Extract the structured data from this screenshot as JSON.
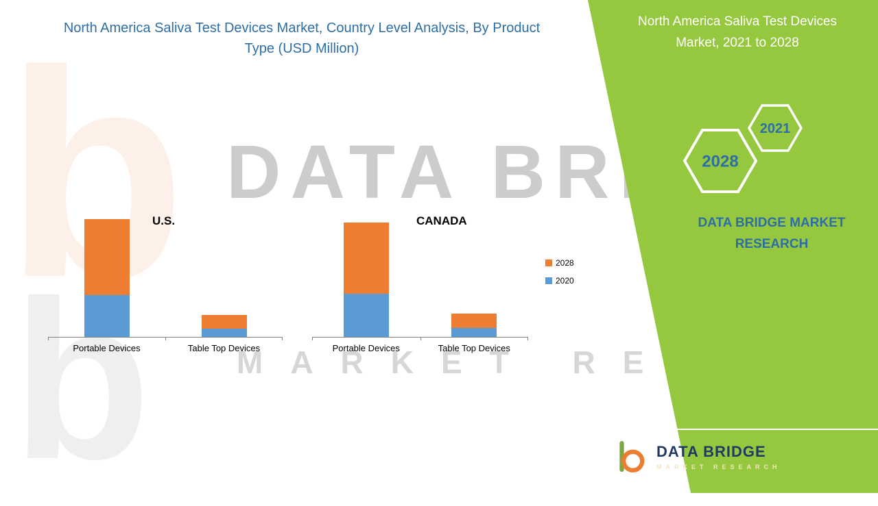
{
  "colors": {
    "title_blue": "#2d6ea6",
    "panel_green": "#95c83e",
    "navy": "#1f3864",
    "bar_orange": "#ED7D31",
    "bar_blue": "#5B9BD5"
  },
  "header": {
    "title_lines": [
      "North America Saliva Test Devices Market, Country Level Analysis, By Product",
      "Type  (USD Million)"
    ]
  },
  "right_panel": {
    "title_lines": [
      "North America Saliva Test Devices",
      "Market, 2021 to 2028"
    ],
    "badge_back": "2028",
    "badge_front": "2021",
    "brand_lines": [
      "DATA BRIDGE MARKET",
      "RESEARCH"
    ]
  },
  "watermark": {
    "line1": "DATA BRIDGE",
    "line2": "MARKET RESEARCH",
    "letter_b": "b"
  },
  "logo": {
    "name": "DATA BRIDGE",
    "subtitle": "MARKET RESEARCH"
  },
  "chart_data": {
    "type": "bar",
    "stacked": true,
    "units": "USD Million",
    "value_axis_visible": false,
    "legend": [
      {
        "label": "2028",
        "color": "#ED7D31"
      },
      {
        "label": "2020",
        "color": "#5B9BD5"
      }
    ],
    "groups": [
      {
        "country": "U.S.",
        "categories": [
          "Portable Devices",
          "Table Top Devices"
        ],
        "series": [
          {
            "name": "2020",
            "color": "#5B9BD5",
            "values": [
              61,
              12
            ]
          },
          {
            "name": "2028",
            "color": "#ED7D31",
            "values": [
              111,
              20
            ]
          }
        ]
      },
      {
        "country": "CANADA",
        "categories": [
          "Portable Devices",
          "Table Top Devices"
        ],
        "series": [
          {
            "name": "2020",
            "color": "#5B9BD5",
            "values": [
              63,
              13
            ]
          },
          {
            "name": "2028",
            "color": "#ED7D31",
            "values": [
              104,
              21
            ]
          }
        ]
      }
    ]
  }
}
